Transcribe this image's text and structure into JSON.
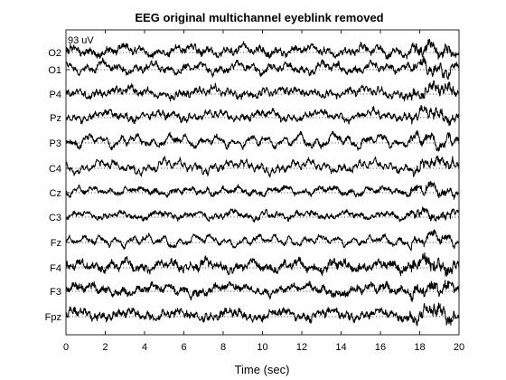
{
  "chart_data": {
    "type": "line",
    "title": "EEG original multichannel eyeblink removed",
    "xlabel": "Time (sec)",
    "ylabel": "",
    "xlim": [
      0,
      20
    ],
    "x_ticks": [
      0,
      2,
      4,
      6,
      8,
      10,
      12,
      14,
      16,
      18,
      20
    ],
    "scale_label": "93 uV",
    "grid": false,
    "baseline_style": "dotted",
    "line_color": "#000000",
    "series": [
      {
        "name": "O2"
      },
      {
        "name": "O1"
      },
      {
        "name": "P4"
      },
      {
        "name": "Pz"
      },
      {
        "name": "P3"
      },
      {
        "name": "C4"
      },
      {
        "name": "Cz"
      },
      {
        "name": "C3"
      },
      {
        "name": "Fz"
      },
      {
        "name": "F4"
      },
      {
        "name": "F3"
      },
      {
        "name": "Fpz"
      }
    ]
  }
}
